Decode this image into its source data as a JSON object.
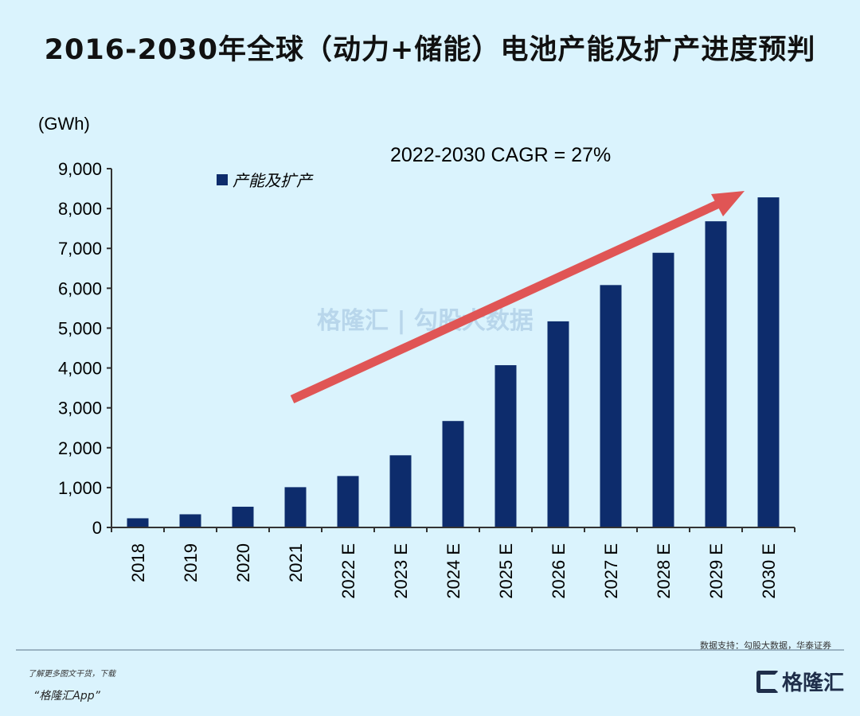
{
  "title": "2016-2030年全球（动力+储能）电池产能及扩产进度预判",
  "watermark": "格隆汇 | 勾股大数据",
  "source": "数据支持：勾股大数据，华泰证券",
  "footer": {
    "line1": "了解更多图文干货，下载",
    "line2": "“格隆汇App”",
    "logo": "格隆汇"
  },
  "colors": {
    "bar": "#0d2c6c",
    "arrow": "#e05555",
    "background": "#daf3fd"
  },
  "chart_data": {
    "type": "bar",
    "title": "2016-2030年全球（动力+储能）电池产能及扩产进度预判",
    "ylabel": "(GWh)",
    "xlabel": "",
    "ylim": [
      0,
      9000
    ],
    "yticks": [
      "0",
      "1,000",
      "2,000",
      "3,000",
      "4,000",
      "5,000",
      "6,000",
      "7,000",
      "8,000",
      "9,000"
    ],
    "categories": [
      "2018",
      "2019",
      "2020",
      "2021",
      "2022 E",
      "2023 E",
      "2024 E",
      "2025 E",
      "2026 E",
      "2027 E",
      "2028 E",
      "2029 E",
      "2030 E"
    ],
    "series": [
      {
        "name": "产能及扩产",
        "values": [
          230,
          330,
          520,
          1010,
          1290,
          1810,
          2670,
          4070,
          5170,
          6080,
          6890,
          7680,
          8280
        ]
      }
    ],
    "legend": "top-left",
    "grid": false,
    "annotation": "2022-2030 CAGR = 27%"
  }
}
